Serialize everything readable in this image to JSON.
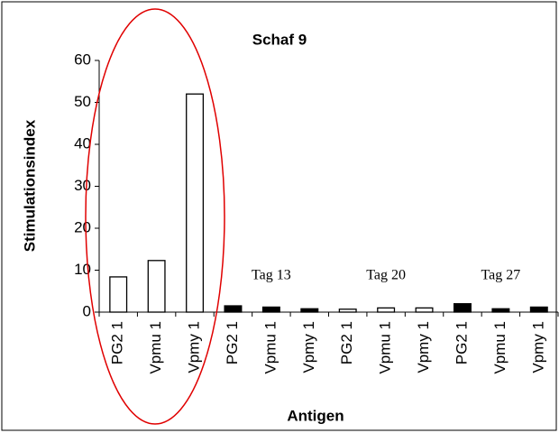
{
  "chart_data": {
    "type": "bar",
    "title": "Schaf 9",
    "x_label": "Antigen",
    "y_label": "Stimulationsindex",
    "categories": [
      "PG2 1",
      "Vpmu 1",
      "Vpmy 1",
      "PG2 1",
      "Vpmu 1",
      "Vpmy 1",
      "PG2 1",
      "Vpmu 1",
      "Vpmy 1",
      "PG2 1",
      "Vpmu 1",
      "Vpmy 1"
    ],
    "values": [
      8.4,
      12.3,
      52,
      1.5,
      1.2,
      0.8,
      0.7,
      1.0,
      1.0,
      2.0,
      0.8,
      1.2
    ],
    "colors": [
      "#ffffff",
      "#ffffff",
      "#ffffff",
      "#000000",
      "#000000",
      "#000000",
      "#ffffff",
      "#ffffff",
      "#ffffff",
      "#000000",
      "#000000",
      "#000000"
    ],
    "annotations": [
      "Tag 13",
      "Tag 20",
      "Tag 27"
    ],
    "ylim": [
      0,
      60
    ],
    "yticks": [
      0,
      10,
      20,
      30,
      40,
      50,
      60
    ],
    "grid": false
  }
}
